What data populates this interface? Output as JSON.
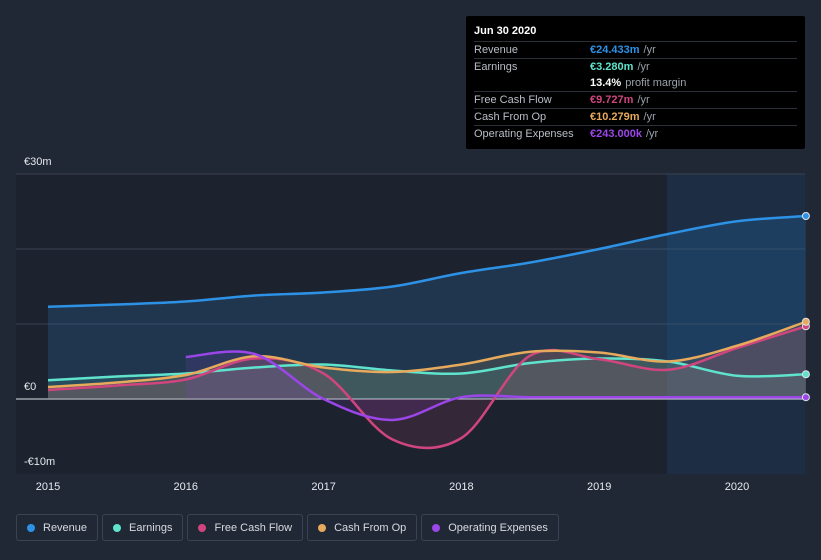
{
  "chart_data": {
    "type": "line",
    "y_axis_labels": [
      "€30m",
      "€0",
      "-€10m"
    ],
    "ylim": [
      -10,
      30
    ],
    "x_ticks": [
      2015,
      2016,
      2017,
      2018,
      2019,
      2020
    ],
    "xlim": [
      2015,
      2020.5
    ],
    "x": [
      2015,
      2015.5,
      2016,
      2016.5,
      2017,
      2017.5,
      2018,
      2018.5,
      2019,
      2019.5,
      2020,
      2020.5
    ],
    "series": [
      {
        "name": "Revenue",
        "color": "#2d92e6",
        "values": [
          12.3,
          12.6,
          13.0,
          13.8,
          14.2,
          15.0,
          16.8,
          18.2,
          20.0,
          22.0,
          23.7,
          24.4
        ]
      },
      {
        "name": "Earnings",
        "color": "#5fe3cc",
        "values": [
          2.5,
          3.0,
          3.4,
          4.2,
          4.6,
          3.8,
          3.4,
          4.8,
          5.4,
          5.0,
          3.1,
          3.3
        ]
      },
      {
        "name": "Free Cash Flow",
        "color": "#d1457f",
        "values": [
          1.2,
          1.8,
          2.6,
          5.4,
          3.4,
          -5.4,
          -5.2,
          5.8,
          5.3,
          3.9,
          6.8,
          9.7
        ]
      },
      {
        "name": "Cash From Op",
        "color": "#e7a95c",
        "values": [
          1.6,
          2.2,
          3.2,
          5.7,
          4.2,
          3.6,
          4.6,
          6.3,
          6.2,
          5.0,
          7.1,
          10.3
        ]
      },
      {
        "name": "Operating Expenses",
        "color": "#9b46e8",
        "values": [
          null,
          null,
          5.6,
          6.0,
          0.0,
          -2.8,
          0.24,
          0.24,
          0.24,
          0.24,
          0.24,
          0.24
        ]
      }
    ],
    "tooltip": {
      "date": "Jun 30 2020",
      "rows": [
        {
          "name": "Revenue",
          "value": "€24.433m",
          "unit": "/yr",
          "color": "#2d92e6"
        },
        {
          "name": "Earnings",
          "value": "€3.280m",
          "unit": "/yr",
          "color": "#5fe3cc"
        },
        {
          "name": "",
          "value": "13.4%",
          "unit": "profit margin",
          "color": "#ffffff"
        },
        {
          "name": "Free Cash Flow",
          "value": "€9.727m",
          "unit": "/yr",
          "color": "#d1457f"
        },
        {
          "name": "Cash From Op",
          "value": "€10.279m",
          "unit": "/yr",
          "color": "#e7a95c"
        },
        {
          "name": "Operating Expenses",
          "value": "€243.000k",
          "unit": "/yr",
          "color": "#9b46e8"
        }
      ]
    }
  },
  "legend": [
    {
      "label": "Revenue",
      "color": "#2d92e6"
    },
    {
      "label": "Earnings",
      "color": "#5fe3cc"
    },
    {
      "label": "Free Cash Flow",
      "color": "#d1457f"
    },
    {
      "label": "Cash From Op",
      "color": "#e7a95c"
    },
    {
      "label": "Operating Expenses",
      "color": "#9b46e8"
    }
  ]
}
